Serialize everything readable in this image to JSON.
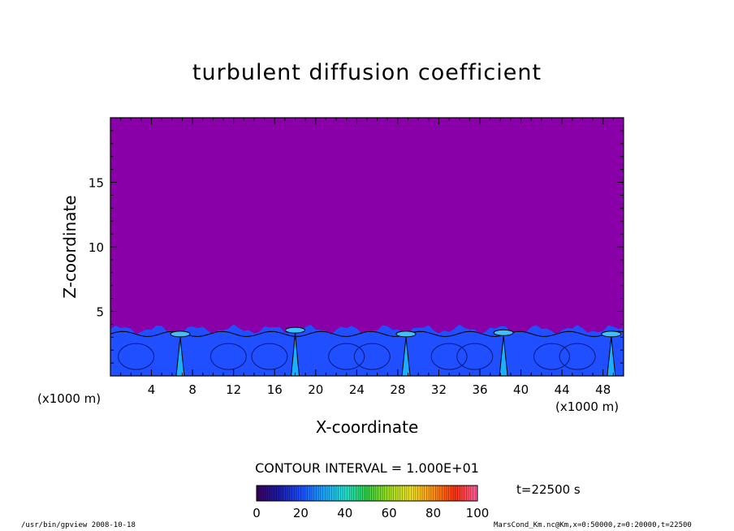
{
  "chart_data": {
    "type": "heatmap",
    "title": "turbulent diffusion coefficient",
    "xlabel": "X-coordinate",
    "ylabel": "Z-coordinate",
    "x_unit": "(x1000 m)",
    "x_unit_right": "(x1000 m)",
    "xlim": [
      0,
      50
    ],
    "ylim": [
      0,
      20
    ],
    "x_ticks": [
      "4",
      "8",
      "12",
      "16",
      "20",
      "24",
      "28",
      "32",
      "36",
      "40",
      "44",
      "48"
    ],
    "y_ticks": [
      "5",
      "10",
      "15"
    ],
    "contour_interval": "CONTOUR INTERVAL = 1.000E+01",
    "time_label": "t=22500 s",
    "colorbar": {
      "min": 0,
      "max": 100,
      "tick_labels": [
        "0",
        "20",
        "40",
        "60",
        "80",
        "100"
      ]
    },
    "plumes": [
      {
        "x": 6.8,
        "peak_z": 3.5,
        "value": 30
      },
      {
        "x": 18.0,
        "peak_z": 3.8,
        "value": 40
      },
      {
        "x": 28.8,
        "peak_z": 3.5,
        "value": 30
      },
      {
        "x": 38.3,
        "peak_z": 3.6,
        "value": 35
      },
      {
        "x": 48.8,
        "peak_z": 3.5,
        "value": 30
      }
    ],
    "background_value": 0,
    "boundary_layer_top_z": 3.6,
    "colors": {
      "background": "#8a00a8",
      "boundary_layer": "#1f4fff",
      "plume_core": "#1ab0ff",
      "contour": "#000000"
    }
  },
  "footer": {
    "left": "/usr/bin/gpview   2008-10-18",
    "right": "MarsCond_Km.nc@Km,x=0:50000,z=0:20000,t=22500"
  }
}
